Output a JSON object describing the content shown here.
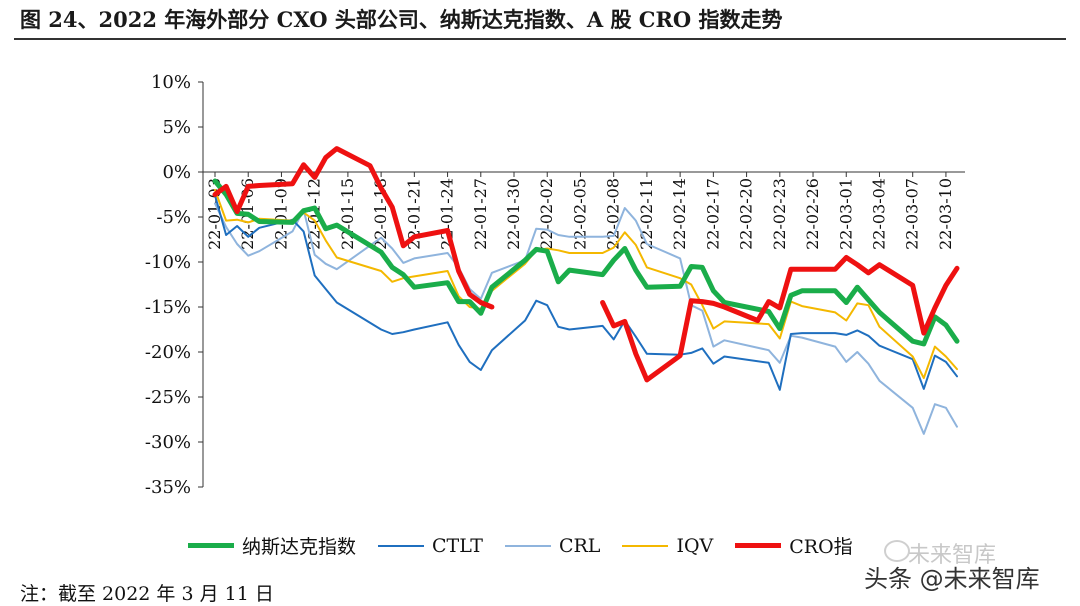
{
  "title": "图 24、2022 年海外部分 CXO 头部公司、纳斯达克指数、A 股 CRO 指数走势",
  "note": "注：截至 2022 年 3 月 11 日",
  "watermark": {
    "faint": "未来智库",
    "main": "头条 @未来智库"
  },
  "colors": {
    "nasdaq": "#1aad4a",
    "ctlt": "#1f6fbf",
    "crl": "#8fb4dd",
    "iqv": "#f4b800",
    "cro": "#ee1111"
  },
  "chart_data": {
    "type": "line",
    "ylim": [
      -35,
      10
    ],
    "yticks": [
      "10%",
      "5%",
      "0%",
      "-5%",
      "-10%",
      "-15%",
      "-20%",
      "-25%",
      "-30%",
      "-35%"
    ],
    "xlim": [
      "2022-01-03",
      "2022-03-11"
    ],
    "xticks": [
      "22-01-03",
      "22-01-06",
      "22-01-09",
      "22-01-12",
      "22-01-15",
      "22-01-18",
      "22-01-21",
      "22-01-24",
      "22-01-27",
      "22-01-30",
      "22-02-02",
      "22-02-05",
      "22-02-08",
      "22-02-11",
      "22-02-14",
      "22-02-17",
      "22-02-20",
      "22-02-23",
      "22-02-26",
      "22-03-01",
      "22-03-04",
      "22-03-07",
      "22-03-10"
    ],
    "series": [
      {
        "name": "纳斯达克指数",
        "key": "nasdaq",
        "x": [
          "2022-01-03",
          "2022-01-04",
          "2022-01-05",
          "2022-01-06",
          "2022-01-07",
          "2022-01-10",
          "2022-01-11",
          "2022-01-12",
          "2022-01-13",
          "2022-01-14",
          "2022-01-18",
          "2022-01-19",
          "2022-01-20",
          "2022-01-21",
          "2022-01-24",
          "2022-01-25",
          "2022-01-26",
          "2022-01-27",
          "2022-01-28",
          "2022-01-31",
          "2022-02-01",
          "2022-02-02",
          "2022-02-03",
          "2022-02-04",
          "2022-02-07",
          "2022-02-08",
          "2022-02-09",
          "2022-02-10",
          "2022-02-11",
          "2022-02-14",
          "2022-02-15",
          "2022-02-16",
          "2022-02-17",
          "2022-02-18",
          "2022-02-22",
          "2022-02-23",
          "2022-02-24",
          "2022-02-25",
          "2022-02-28",
          "2022-03-01",
          "2022-03-02",
          "2022-03-03",
          "2022-03-04",
          "2022-03-07",
          "2022-03-08",
          "2022-03-09",
          "2022-03-10",
          "2022-03-11"
        ],
        "values": [
          -1.0,
          -2.5,
          -4.6,
          -4.7,
          -5.5,
          -5.6,
          -4.3,
          -4.0,
          -6.3,
          -5.9,
          -8.9,
          -10.6,
          -11.4,
          -12.8,
          -12.3,
          -14.4,
          -14.4,
          -15.7,
          -12.8,
          -9.8,
          -8.6,
          -8.8,
          -12.2,
          -10.9,
          -11.4,
          -9.8,
          -8.5,
          -10.9,
          -12.8,
          -12.7,
          -10.5,
          -10.6,
          -13.2,
          -14.5,
          -15.5,
          -17.4,
          -13.7,
          -13.2,
          -13.2,
          -14.5,
          -12.8,
          -14.2,
          -15.6,
          -18.8,
          -19.1,
          -16.1,
          -17.0,
          -18.8
        ]
      },
      {
        "name": "CTLT",
        "key": "ctlt",
        "x": [
          "2022-01-03",
          "2022-01-04",
          "2022-01-05",
          "2022-01-06",
          "2022-01-07",
          "2022-01-10",
          "2022-01-11",
          "2022-01-12",
          "2022-01-13",
          "2022-01-14",
          "2022-01-18",
          "2022-01-19",
          "2022-01-20",
          "2022-01-21",
          "2022-01-24",
          "2022-01-25",
          "2022-01-26",
          "2022-01-27",
          "2022-01-28",
          "2022-01-31",
          "2022-02-01",
          "2022-02-02",
          "2022-02-03",
          "2022-02-04",
          "2022-02-07",
          "2022-02-08",
          "2022-02-09",
          "2022-02-10",
          "2022-02-11",
          "2022-02-14",
          "2022-02-15",
          "2022-02-16",
          "2022-02-17",
          "2022-02-18",
          "2022-02-22",
          "2022-02-23",
          "2022-02-24",
          "2022-02-25",
          "2022-02-28",
          "2022-03-01",
          "2022-03-02",
          "2022-03-03",
          "2022-03-04",
          "2022-03-07",
          "2022-03-08",
          "2022-03-09",
          "2022-03-10",
          "2022-03-11"
        ],
        "values": [
          -2.6,
          -7.0,
          -6.0,
          -7.2,
          -6.2,
          -5.3,
          -6.6,
          -11.5,
          -13.0,
          -14.5,
          -17.5,
          -18.0,
          -17.8,
          -17.5,
          -16.7,
          -19.2,
          -21.1,
          -22.0,
          -19.8,
          -16.5,
          -14.3,
          -14.8,
          -17.2,
          -17.5,
          -17.1,
          -18.6,
          -16.5,
          -18.3,
          -20.2,
          -20.3,
          -20.1,
          -19.6,
          -21.3,
          -20.5,
          -21.2,
          -24.2,
          -18.0,
          -17.9,
          -17.9,
          -18.1,
          -17.6,
          -18.2,
          -19.3,
          -20.8,
          -24.1,
          -20.4,
          -21.1,
          -22.7
        ]
      },
      {
        "name": "CRL",
        "key": "crl",
        "x": [
          "2022-01-03",
          "2022-01-04",
          "2022-01-05",
          "2022-01-06",
          "2022-01-07",
          "2022-01-10",
          "2022-01-11",
          "2022-01-12",
          "2022-01-13",
          "2022-01-14",
          "2022-01-18",
          "2022-01-19",
          "2022-01-20",
          "2022-01-21",
          "2022-01-24",
          "2022-01-25",
          "2022-01-26",
          "2022-01-27",
          "2022-01-28",
          "2022-01-31",
          "2022-02-01",
          "2022-02-02",
          "2022-02-03",
          "2022-02-04",
          "2022-02-07",
          "2022-02-08",
          "2022-02-09",
          "2022-02-10",
          "2022-02-11",
          "2022-02-14",
          "2022-02-15",
          "2022-02-16",
          "2022-02-17",
          "2022-02-18",
          "2022-02-22",
          "2022-02-23",
          "2022-02-24",
          "2022-02-25",
          "2022-02-28",
          "2022-03-01",
          "2022-03-02",
          "2022-03-03",
          "2022-03-04",
          "2022-03-07",
          "2022-03-08",
          "2022-03-09",
          "2022-03-10",
          "2022-03-11"
        ],
        "values": [
          -3.5,
          -6.1,
          -8.0,
          -9.3,
          -8.8,
          -6.6,
          -4.2,
          -9.2,
          -10.2,
          -10.8,
          -7.3,
          -8.5,
          -10.1,
          -9.6,
          -9.0,
          -10.6,
          -13.0,
          -14.1,
          -11.2,
          -9.8,
          -6.3,
          -6.4,
          -7.0,
          -7.2,
          -7.2,
          -7.1,
          -4.0,
          -5.4,
          -8.0,
          -9.6,
          -14.8,
          -15.4,
          -19.4,
          -18.7,
          -19.8,
          -21.2,
          -18.2,
          -18.4,
          -19.4,
          -21.1,
          -20.0,
          -21.3,
          -23.2,
          -26.2,
          -29.1,
          -25.8,
          -26.2,
          -28.3
        ]
      },
      {
        "name": "IQV",
        "key": "iqv",
        "x": [
          "2022-01-03",
          "2022-01-04",
          "2022-01-05",
          "2022-01-06",
          "2022-01-07",
          "2022-01-10",
          "2022-01-11",
          "2022-01-12",
          "2022-01-13",
          "2022-01-14",
          "2022-01-18",
          "2022-01-19",
          "2022-01-20",
          "2022-01-21",
          "2022-01-24",
          "2022-01-25",
          "2022-01-26",
          "2022-01-27",
          "2022-01-28",
          "2022-01-31",
          "2022-02-01",
          "2022-02-02",
          "2022-02-03",
          "2022-02-04",
          "2022-02-07",
          "2022-02-08",
          "2022-02-09",
          "2022-02-10",
          "2022-02-11",
          "2022-02-14",
          "2022-02-15",
          "2022-02-16",
          "2022-02-17",
          "2022-02-18",
          "2022-02-22",
          "2022-02-23",
          "2022-02-24",
          "2022-02-25",
          "2022-02-28",
          "2022-03-01",
          "2022-03-02",
          "2022-03-03",
          "2022-03-04",
          "2022-03-07",
          "2022-03-08",
          "2022-03-09",
          "2022-03-10",
          "2022-03-11"
        ],
        "values": [
          -2.0,
          -5.4,
          -5.3,
          -5.6,
          -5.2,
          -5.4,
          -4.5,
          -5.4,
          -7.6,
          -9.5,
          -11.0,
          -12.2,
          -11.8,
          -11.6,
          -11.0,
          -13.8,
          -15.0,
          -15.2,
          -13.2,
          -10.2,
          -8.7,
          -8.5,
          -8.7,
          -9.0,
          -9.0,
          -8.4,
          -6.7,
          -8.1,
          -10.6,
          -11.8,
          -12.5,
          -14.8,
          -17.4,
          -16.6,
          -16.9,
          -18.5,
          -14.4,
          -14.9,
          -15.6,
          -16.5,
          -14.6,
          -14.8,
          -17.2,
          -20.5,
          -22.9,
          -19.4,
          -20.5,
          -21.9
        ]
      },
      {
        "name": "CRO指数",
        "key": "cro",
        "x": [
          "2022-01-03",
          "2022-01-04",
          "2022-01-05",
          "2022-01-06",
          "2022-01-07",
          "2022-01-10",
          "2022-01-11",
          "2022-01-12",
          "2022-01-13",
          "2022-01-14",
          "2022-01-17",
          "2022-01-18",
          "2022-01-19",
          "2022-01-20",
          "2022-01-21",
          "2022-01-24",
          "2022-01-25",
          "2022-01-26",
          "2022-01-27",
          "2022-01-28",
          null,
          "2022-02-07",
          "2022-02-08",
          "2022-02-09",
          "2022-02-10",
          "2022-02-11",
          "2022-02-14",
          "2022-02-15",
          "2022-02-16",
          "2022-02-17",
          "2022-02-18",
          "2022-02-21",
          "2022-02-22",
          "2022-02-23",
          "2022-02-24",
          "2022-02-25",
          "2022-02-28",
          "2022-03-01",
          "2022-03-02",
          "2022-03-03",
          "2022-03-04",
          "2022-03-07",
          "2022-03-08",
          "2022-03-09",
          "2022-03-10",
          "2022-03-11"
        ],
        "values": [
          -2.5,
          -1.6,
          -4.4,
          -1.6,
          -1.5,
          -1.3,
          0.8,
          -0.6,
          1.6,
          2.6,
          0.7,
          -1.8,
          -3.9,
          -8.2,
          -7.2,
          -6.5,
          -11.0,
          -13.6,
          -14.5,
          -15.0,
          null,
          -14.5,
          -17.1,
          -16.6,
          -20.2,
          -23.1,
          -20.4,
          -14.3,
          -14.4,
          -14.6,
          -15.0,
          -16.5,
          -14.4,
          -15.1,
          -10.8,
          -10.8,
          -10.8,
          -9.5,
          -10.3,
          -11.2,
          -10.3,
          -12.6,
          -17.9,
          -15.1,
          -12.6,
          -10.7
        ]
      }
    ]
  },
  "legend": [
    {
      "key": "nasdaq",
      "label": "纳斯达克指数"
    },
    {
      "key": "ctlt",
      "label": "CTLT"
    },
    {
      "key": "crl",
      "label": "CRL"
    },
    {
      "key": "iqv",
      "label": "IQV"
    },
    {
      "key": "cro",
      "label": "CRO指"
    }
  ]
}
